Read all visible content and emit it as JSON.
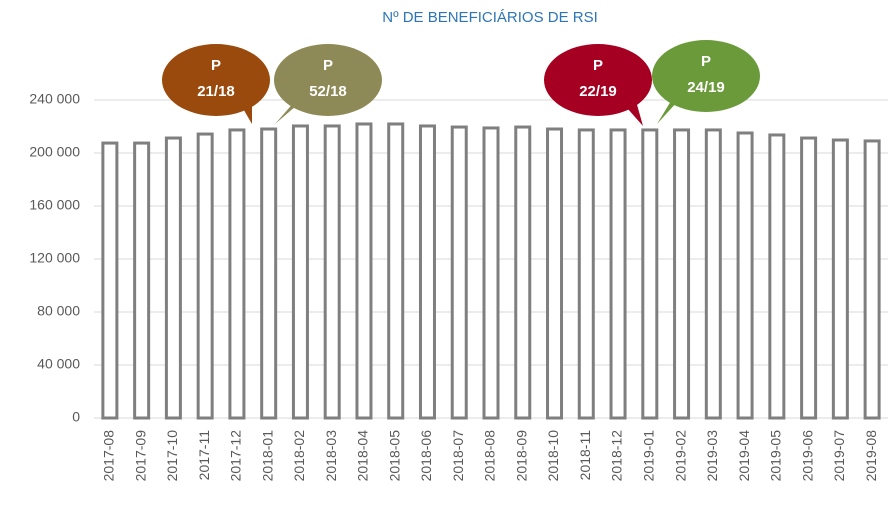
{
  "chart_data": {
    "type": "bar",
    "title": "Nº DE BENEFICIÁRIOS DE RSI",
    "categories": [
      "2017-08",
      "2017-09",
      "2017-10",
      "2017-11",
      "2017-12",
      "2018-01",
      "2018-02",
      "2018-03",
      "2018-04",
      "2018-05",
      "2018-06",
      "2018-07",
      "2018-08",
      "2018-09",
      "2018-10",
      "2018-11",
      "2018-12",
      "2019-01",
      "2019-02",
      "2019-03",
      "2019-04",
      "2019-05",
      "2019-06",
      "2019-07",
      "2019-08"
    ],
    "values": [
      207500,
      207500,
      211300,
      214300,
      217400,
      218100,
      220400,
      220400,
      221900,
      221900,
      220400,
      219600,
      218900,
      219600,
      218100,
      217400,
      217400,
      217400,
      217400,
      217400,
      215100,
      213600,
      211300,
      209800,
      209100
    ],
    "color": "#7f7f7f",
    "ylim": [
      0,
      240000
    ],
    "yticks": [
      0,
      {
        "value": 40000,
        "label": "40 000"
      },
      {
        "value": 80000,
        "label": "80 000"
      },
      {
        "value": 120000,
        "label": "120 000"
      },
      {
        "value": 160000,
        "label": "160 000"
      },
      {
        "value": 200000,
        "label": "200 000"
      },
      {
        "value": 240000,
        "label": "240 000"
      }
    ],
    "grid": true,
    "annotations": [
      {
        "lines": [
          "P",
          "21/18"
        ],
        "color": "#9a4a0c"
      },
      {
        "lines": [
          "P",
          "52/18"
        ],
        "color": "#8e8a57"
      },
      {
        "lines": [
          "P",
          "22/19"
        ],
        "color": "#a50021"
      },
      {
        "lines": [
          "P",
          "24/19"
        ],
        "color": "#6a9a3a"
      }
    ]
  }
}
